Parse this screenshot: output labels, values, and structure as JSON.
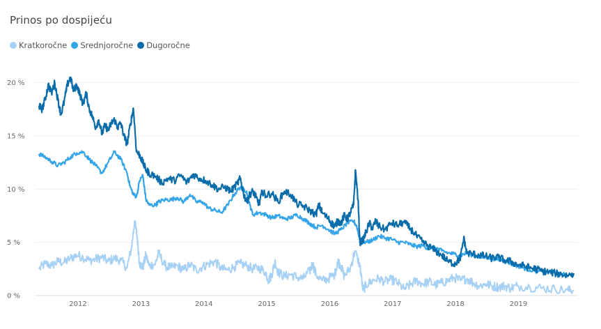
{
  "chart_data": {
    "type": "line",
    "title": "Prinos po dospijeću",
    "xlabel": "",
    "ylabel": "",
    "x_range": [
      2011.4,
      2019.9
    ],
    "ylim": [
      0,
      22
    ],
    "y_ticks": [
      {
        "value": 0,
        "label": "0 %"
      },
      {
        "value": 5,
        "label": "5 %"
      },
      {
        "value": 10,
        "label": "10 %"
      },
      {
        "value": 15,
        "label": "15 %"
      },
      {
        "value": 20,
        "label": "20 %"
      }
    ],
    "x_ticks": [
      {
        "value": 2012,
        "label": "2012"
      },
      {
        "value": 2013,
        "label": "2013"
      },
      {
        "value": 2014,
        "label": "2014"
      },
      {
        "value": 2015,
        "label": "2015"
      },
      {
        "value": 2016,
        "label": "2016"
      },
      {
        "value": 2017,
        "label": "2017"
      },
      {
        "value": 2018,
        "label": "2018"
      },
      {
        "value": 2019,
        "label": "2019"
      }
    ],
    "grid": true,
    "legend_position": "top-left",
    "series": [
      {
        "name": "Kratkoročne",
        "color": "#a6d1f5",
        "points": [
          [
            2011.4,
            2.5
          ],
          [
            2011.5,
            3.0
          ],
          [
            2011.6,
            2.8
          ],
          [
            2011.7,
            3.2
          ],
          [
            2011.8,
            3.1
          ],
          [
            2011.9,
            3.5
          ],
          [
            2012.0,
            3.8
          ],
          [
            2012.1,
            3.6
          ],
          [
            2012.2,
            3.3
          ],
          [
            2012.3,
            3.4
          ],
          [
            2012.4,
            3.6
          ],
          [
            2012.5,
            3.2
          ],
          [
            2012.6,
            3.5
          ],
          [
            2012.7,
            3.3
          ],
          [
            2012.8,
            2.6
          ],
          [
            2012.87,
            4.5
          ],
          [
            2012.92,
            7.0
          ],
          [
            2012.96,
            5.5
          ],
          [
            2013.0,
            3.0
          ],
          [
            2013.05,
            2.6
          ],
          [
            2013.1,
            3.8
          ],
          [
            2013.15,
            2.8
          ],
          [
            2013.25,
            3.0
          ],
          [
            2013.3,
            4.0
          ],
          [
            2013.4,
            2.8
          ],
          [
            2013.5,
            2.6
          ],
          [
            2013.6,
            2.8
          ],
          [
            2013.7,
            2.4
          ],
          [
            2013.8,
            2.9
          ],
          [
            2013.9,
            2.4
          ],
          [
            2014.0,
            2.7
          ],
          [
            2014.1,
            3.0
          ],
          [
            2014.2,
            3.2
          ],
          [
            2014.3,
            2.5
          ],
          [
            2014.4,
            2.4
          ],
          [
            2014.5,
            2.7
          ],
          [
            2014.6,
            3.0
          ],
          [
            2014.7,
            2.8
          ],
          [
            2014.8,
            2.5
          ],
          [
            2014.9,
            2.6
          ],
          [
            2015.0,
            2.2
          ],
          [
            2015.05,
            1.4
          ],
          [
            2015.1,
            2.0
          ],
          [
            2015.15,
            3.2
          ],
          [
            2015.2,
            2.2
          ],
          [
            2015.3,
            1.8
          ],
          [
            2015.4,
            2.0
          ],
          [
            2015.5,
            1.7
          ],
          [
            2015.6,
            1.6
          ],
          [
            2015.7,
            2.3
          ],
          [
            2015.75,
            3.0
          ],
          [
            2015.8,
            2.0
          ],
          [
            2015.9,
            1.4
          ],
          [
            2016.0,
            1.6
          ],
          [
            2016.1,
            2.0
          ],
          [
            2016.15,
            3.2
          ],
          [
            2016.2,
            2.8
          ],
          [
            2016.25,
            1.8
          ],
          [
            2016.35,
            2.6
          ],
          [
            2016.42,
            4.2
          ],
          [
            2016.5,
            2.8
          ],
          [
            2016.55,
            0.5
          ],
          [
            2016.6,
            1.0
          ],
          [
            2016.7,
            1.4
          ],
          [
            2016.8,
            1.6
          ],
          [
            2016.9,
            1.3
          ],
          [
            2017.0,
            1.5
          ],
          [
            2017.1,
            1.2
          ],
          [
            2017.2,
            0.6
          ],
          [
            2017.3,
            1.0
          ],
          [
            2017.4,
            1.4
          ],
          [
            2017.5,
            1.1
          ],
          [
            2017.6,
            1.3
          ],
          [
            2017.7,
            1.0
          ],
          [
            2017.8,
            1.2
          ],
          [
            2017.9,
            1.4
          ],
          [
            2018.0,
            1.7
          ],
          [
            2018.1,
            1.4
          ],
          [
            2018.2,
            1.6
          ],
          [
            2018.3,
            1.2
          ],
          [
            2018.4,
            0.9
          ],
          [
            2018.5,
            1.1
          ],
          [
            2018.6,
            0.9
          ],
          [
            2018.7,
            0.8
          ],
          [
            2018.8,
            0.9
          ],
          [
            2018.9,
            0.7
          ],
          [
            2019.0,
            0.9
          ],
          [
            2019.2,
            0.8
          ],
          [
            2019.4,
            0.7
          ],
          [
            2019.6,
            0.6
          ],
          [
            2019.8,
            0.5
          ],
          [
            2019.9,
            0.5
          ]
        ]
      },
      {
        "name": "Srednjoročne",
        "color": "#35a5e8",
        "points": [
          [
            2011.4,
            13.3
          ],
          [
            2011.5,
            13.0
          ],
          [
            2011.6,
            12.6
          ],
          [
            2011.7,
            12.2
          ],
          [
            2011.8,
            12.5
          ],
          [
            2011.9,
            13.0
          ],
          [
            2012.0,
            13.4
          ],
          [
            2012.1,
            13.5
          ],
          [
            2012.2,
            12.8
          ],
          [
            2012.3,
            12.2
          ],
          [
            2012.4,
            11.5
          ],
          [
            2012.5,
            12.5
          ],
          [
            2012.6,
            13.5
          ],
          [
            2012.7,
            12.8
          ],
          [
            2012.8,
            11.5
          ],
          [
            2012.85,
            10.2
          ],
          [
            2012.9,
            9.5
          ],
          [
            2012.95,
            9.3
          ],
          [
            2013.0,
            10.8
          ],
          [
            2013.05,
            11.3
          ],
          [
            2013.1,
            9.0
          ],
          [
            2013.15,
            8.5
          ],
          [
            2013.25,
            8.5
          ],
          [
            2013.3,
            8.8
          ],
          [
            2013.4,
            9.0
          ],
          [
            2013.5,
            9.0
          ],
          [
            2013.6,
            9.2
          ],
          [
            2013.7,
            8.8
          ],
          [
            2013.8,
            9.5
          ],
          [
            2013.9,
            8.8
          ],
          [
            2014.0,
            8.8
          ],
          [
            2014.1,
            8.2
          ],
          [
            2014.2,
            8.0
          ],
          [
            2014.3,
            7.8
          ],
          [
            2014.4,
            8.5
          ],
          [
            2014.5,
            9.5
          ],
          [
            2014.6,
            10.2
          ],
          [
            2014.7,
            9.8
          ],
          [
            2014.75,
            8.5
          ],
          [
            2014.8,
            7.6
          ],
          [
            2014.9,
            7.8
          ],
          [
            2015.0,
            7.6
          ],
          [
            2015.1,
            7.3
          ],
          [
            2015.2,
            7.5
          ],
          [
            2015.3,
            7.2
          ],
          [
            2015.4,
            7.3
          ],
          [
            2015.5,
            7.6
          ],
          [
            2015.6,
            7.2
          ],
          [
            2015.7,
            6.8
          ],
          [
            2015.8,
            6.4
          ],
          [
            2015.9,
            6.6
          ],
          [
            2016.0,
            6.2
          ],
          [
            2016.1,
            5.8
          ],
          [
            2016.2,
            6.2
          ],
          [
            2016.3,
            6.8
          ],
          [
            2016.4,
            7.0
          ],
          [
            2016.45,
            6.5
          ],
          [
            2016.5,
            5.2
          ],
          [
            2016.6,
            5.0
          ],
          [
            2016.7,
            5.2
          ],
          [
            2016.8,
            5.6
          ],
          [
            2016.9,
            5.4
          ],
          [
            2017.0,
            5.3
          ],
          [
            2017.1,
            5.0
          ],
          [
            2017.2,
            5.0
          ],
          [
            2017.3,
            4.8
          ],
          [
            2017.4,
            4.6
          ],
          [
            2017.5,
            4.7
          ],
          [
            2017.6,
            4.4
          ],
          [
            2017.7,
            4.5
          ],
          [
            2017.8,
            4.2
          ],
          [
            2017.9,
            4.0
          ],
          [
            2018.0,
            3.9
          ],
          [
            2018.1,
            3.8
          ],
          [
            2018.2,
            4.0
          ],
          [
            2018.3,
            3.8
          ],
          [
            2018.4,
            3.6
          ],
          [
            2018.5,
            3.6
          ],
          [
            2018.6,
            3.5
          ],
          [
            2018.7,
            3.4
          ],
          [
            2018.8,
            3.3
          ],
          [
            2018.9,
            3.0
          ],
          [
            2019.0,
            2.8
          ],
          [
            2019.1,
            2.6
          ],
          [
            2019.2,
            2.4
          ],
          [
            2019.4,
            2.2
          ],
          [
            2019.6,
            2.1
          ],
          [
            2019.8,
            1.9
          ],
          [
            2019.9,
            2.0
          ]
        ]
      },
      {
        "name": "Dugoročne",
        "color": "#0a6ca8",
        "points": [
          [
            2011.4,
            17.8
          ],
          [
            2011.45,
            17.5
          ],
          [
            2011.5,
            18.5
          ],
          [
            2011.55,
            19.8
          ],
          [
            2011.6,
            19.0
          ],
          [
            2011.65,
            20.0
          ],
          [
            2011.7,
            18.4
          ],
          [
            2011.75,
            17.0
          ],
          [
            2011.8,
            18.2
          ],
          [
            2011.85,
            19.8
          ],
          [
            2011.9,
            20.5
          ],
          [
            2011.95,
            19.2
          ],
          [
            2012.0,
            19.8
          ],
          [
            2012.05,
            18.9
          ],
          [
            2012.1,
            18.0
          ],
          [
            2012.15,
            19.0
          ],
          [
            2012.2,
            17.5
          ],
          [
            2012.25,
            16.8
          ],
          [
            2012.3,
            15.8
          ],
          [
            2012.35,
            16.5
          ],
          [
            2012.4,
            15.2
          ],
          [
            2012.45,
            16.0
          ],
          [
            2012.5,
            15.5
          ],
          [
            2012.55,
            16.2
          ],
          [
            2012.6,
            16.5
          ],
          [
            2012.65,
            15.8
          ],
          [
            2012.7,
            16.2
          ],
          [
            2012.75,
            15.0
          ],
          [
            2012.8,
            14.2
          ],
          [
            2012.85,
            16.0
          ],
          [
            2012.9,
            17.6
          ],
          [
            2012.95,
            13.5
          ],
          [
            2013.0,
            13.2
          ],
          [
            2013.05,
            12.5
          ],
          [
            2013.1,
            11.8
          ],
          [
            2013.15,
            11.5
          ],
          [
            2013.25,
            11.2
          ],
          [
            2013.35,
            10.6
          ],
          [
            2013.45,
            11.0
          ],
          [
            2013.55,
            10.8
          ],
          [
            2013.65,
            11.3
          ],
          [
            2013.75,
            10.6
          ],
          [
            2013.85,
            11.4
          ],
          [
            2013.95,
            11.0
          ],
          [
            2014.05,
            10.8
          ],
          [
            2014.15,
            10.4
          ],
          [
            2014.25,
            10.0
          ],
          [
            2014.35,
            10.2
          ],
          [
            2014.45,
            9.8
          ],
          [
            2014.55,
            10.5
          ],
          [
            2014.6,
            11.0
          ],
          [
            2014.65,
            9.6
          ],
          [
            2014.7,
            8.8
          ],
          [
            2014.75,
            9.5
          ],
          [
            2014.8,
            9.8
          ],
          [
            2014.85,
            9.2
          ],
          [
            2014.9,
            8.6
          ],
          [
            2014.95,
            9.8
          ],
          [
            2015.0,
            9.4
          ],
          [
            2015.1,
            9.6
          ],
          [
            2015.2,
            8.8
          ],
          [
            2015.3,
            9.8
          ],
          [
            2015.4,
            9.5
          ],
          [
            2015.5,
            8.6
          ],
          [
            2015.6,
            8.4
          ],
          [
            2015.7,
            8.0
          ],
          [
            2015.8,
            7.6
          ],
          [
            2015.85,
            8.5
          ],
          [
            2015.9,
            7.8
          ],
          [
            2016.0,
            7.2
          ],
          [
            2016.05,
            6.8
          ],
          [
            2016.1,
            6.5
          ],
          [
            2016.15,
            7.0
          ],
          [
            2016.2,
            6.8
          ],
          [
            2016.25,
            7.5
          ],
          [
            2016.3,
            7.2
          ],
          [
            2016.35,
            7.8
          ],
          [
            2016.4,
            8.5
          ],
          [
            2016.43,
            11.8
          ],
          [
            2016.47,
            9.0
          ],
          [
            2016.5,
            5.0
          ],
          [
            2016.55,
            5.2
          ],
          [
            2016.6,
            6.0
          ],
          [
            2016.65,
            6.8
          ],
          [
            2016.7,
            6.3
          ],
          [
            2016.75,
            7.0
          ],
          [
            2016.8,
            6.5
          ],
          [
            2016.9,
            6.2
          ],
          [
            2017.0,
            6.8
          ],
          [
            2017.1,
            6.6
          ],
          [
            2017.2,
            6.9
          ],
          [
            2017.3,
            6.3
          ],
          [
            2017.4,
            5.6
          ],
          [
            2017.5,
            5.0
          ],
          [
            2017.6,
            4.6
          ],
          [
            2017.7,
            4.2
          ],
          [
            2017.8,
            3.8
          ],
          [
            2017.9,
            3.2
          ],
          [
            2018.0,
            3.0
          ],
          [
            2018.05,
            3.2
          ],
          [
            2018.1,
            3.6
          ],
          [
            2018.15,
            5.4
          ],
          [
            2018.2,
            4.0
          ],
          [
            2018.3,
            3.9
          ],
          [
            2018.4,
            3.8
          ],
          [
            2018.5,
            3.7
          ],
          [
            2018.6,
            3.5
          ],
          [
            2018.7,
            3.6
          ],
          [
            2018.8,
            3.3
          ],
          [
            2018.9,
            3.2
          ],
          [
            2019.0,
            2.9
          ],
          [
            2019.1,
            2.8
          ],
          [
            2019.2,
            2.6
          ],
          [
            2019.3,
            2.5
          ],
          [
            2019.4,
            2.3
          ],
          [
            2019.5,
            2.2
          ],
          [
            2019.6,
            2.1
          ],
          [
            2019.7,
            2.0
          ],
          [
            2019.8,
            1.9
          ],
          [
            2019.9,
            2.1
          ]
        ]
      }
    ]
  }
}
